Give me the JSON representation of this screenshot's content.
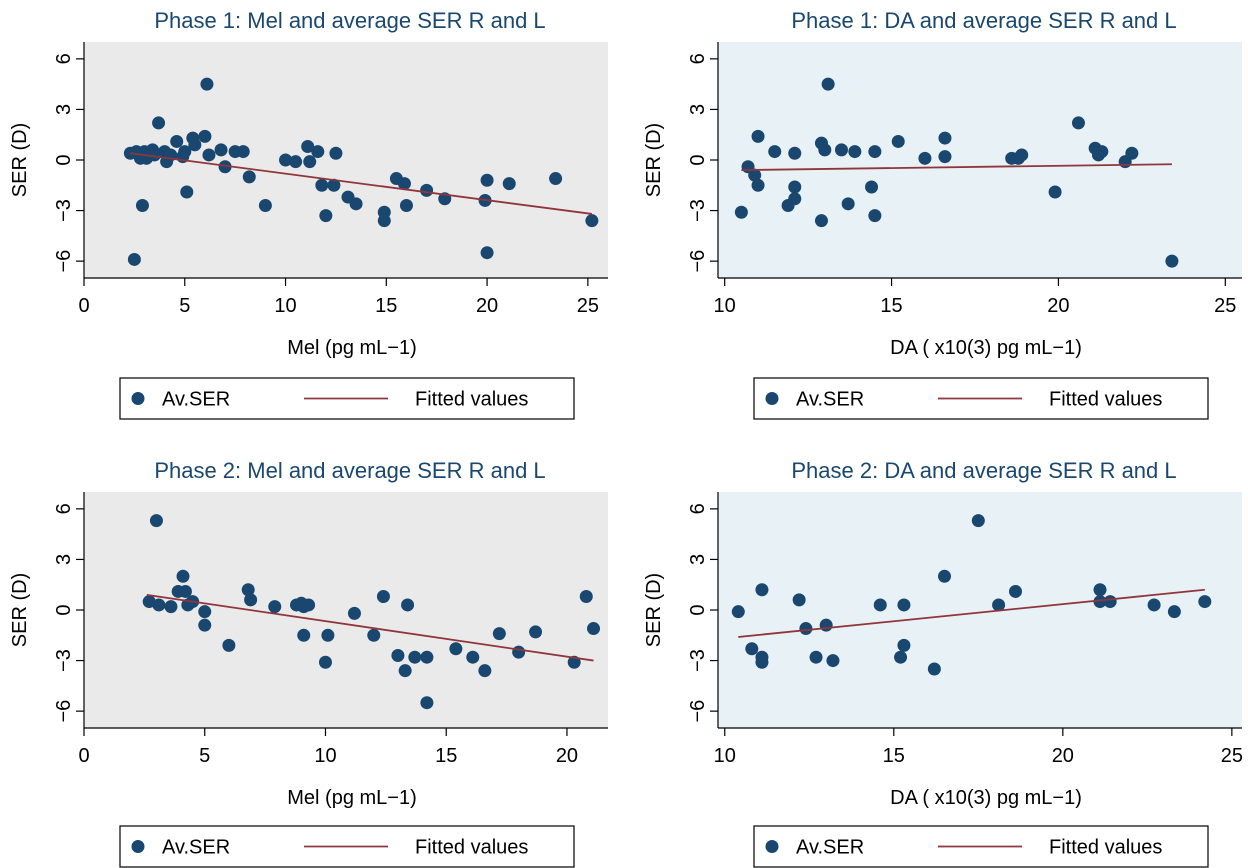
{
  "figure": {
    "colors": {
      "marker": "#1a476f",
      "fit_line": "#90353b",
      "plot_bg_left": "#eaeaea",
      "plot_bg_right": "#e8f1f5",
      "title_text": "#1a476f",
      "axis": "#000000"
    }
  },
  "chart_data": [
    {
      "type": "scatter",
      "title": "Phase 1: Mel and average SER R and L",
      "xlabel": "Mel (pg mL−1)",
      "ylabel": "SER (D)",
      "xlim": [
        0,
        26
      ],
      "ylim": [
        -7,
        7
      ],
      "xticks": [
        0,
        5,
        10,
        15,
        20,
        25
      ],
      "yticks": [
        -6,
        -3,
        0,
        3,
        6
      ],
      "grid": false,
      "legend_position": "bottom",
      "series": [
        {
          "name": "Av.SER",
          "x": [
            2.3,
            2.5,
            2.6,
            2.8,
            2.9,
            3.0,
            3.1,
            3.4,
            3.5,
            3.7,
            4.0,
            4.1,
            4.3,
            4.6,
            4.9,
            5.0,
            5.1,
            5.4,
            5.5,
            6.0,
            6.1,
            6.2,
            6.8,
            7.0,
            7.5,
            7.9,
            8.2,
            9.0,
            10.0,
            10.5,
            11.1,
            11.2,
            11.6,
            11.8,
            12.0,
            12.4,
            12.5,
            13.1,
            13.5,
            14.9,
            14.9,
            15.5,
            15.9,
            16.0,
            17.0,
            17.9,
            19.9,
            20.0,
            20.0,
            21.1,
            23.4,
            25.2
          ],
          "y": [
            0.4,
            -5.9,
            0.5,
            0.1,
            -2.7,
            0.5,
            0.1,
            0.6,
            0.3,
            2.2,
            0.5,
            -0.1,
            0.3,
            1.1,
            0.2,
            0.5,
            -1.9,
            1.3,
            0.9,
            1.4,
            4.5,
            0.3,
            0.6,
            -0.4,
            0.5,
            0.5,
            -1.0,
            -2.7,
            0.0,
            -0.1,
            0.8,
            -0.1,
            0.5,
            -1.5,
            -3.3,
            -1.5,
            0.4,
            -2.2,
            -2.6,
            -3.1,
            -3.6,
            -1.1,
            -1.4,
            -2.7,
            -1.8,
            -2.3,
            -2.4,
            -1.2,
            -5.5,
            -1.4,
            -1.1,
            -3.6
          ]
        },
        {
          "name": "Fitted values",
          "x": [
            2.3,
            25.2
          ],
          "y": [
            0.4,
            -3.2
          ]
        }
      ]
    },
    {
      "type": "scatter",
      "title": "Phase 1: DA and average SER R and L",
      "xlabel": "DA ( x10(3) pg mL−1)",
      "ylabel": "SER (D)",
      "xlim": [
        9.8,
        25.5
      ],
      "ylim": [
        -7,
        7
      ],
      "xticks": [
        10,
        15,
        20,
        25
      ],
      "yticks": [
        -6,
        -3,
        0,
        3,
        6
      ],
      "grid": false,
      "legend_position": "bottom",
      "series": [
        {
          "name": "Av.SER",
          "x": [
            10.5,
            10.7,
            10.9,
            11.0,
            11.0,
            11.5,
            11.9,
            12.1,
            12.1,
            12.1,
            12.9,
            12.9,
            13.0,
            13.1,
            13.5,
            13.7,
            13.9,
            14.4,
            14.5,
            14.5,
            15.2,
            16.0,
            16.6,
            16.6,
            18.6,
            18.8,
            18.9,
            19.9,
            20.6,
            21.1,
            21.2,
            21.3,
            22.0,
            22.2,
            23.4
          ],
          "y": [
            -3.1,
            -0.4,
            -0.9,
            -1.5,
            1.4,
            0.5,
            -2.7,
            -2.3,
            -1.6,
            0.4,
            1.0,
            -3.6,
            0.6,
            4.5,
            0.6,
            -2.6,
            0.5,
            -1.6,
            -3.3,
            0.5,
            1.1,
            0.1,
            0.2,
            1.3,
            0.1,
            0.1,
            0.3,
            -1.9,
            2.2,
            0.7,
            0.3,
            0.5,
            -0.1,
            0.4,
            -6.0
          ]
        },
        {
          "name": "Fitted values",
          "x": [
            10.5,
            23.4
          ],
          "y": [
            -0.6,
            -0.25
          ]
        }
      ]
    },
    {
      "type": "scatter",
      "title": "Phase 2: Mel and average SER R and L",
      "xlabel": "Mel (pg mL−1)",
      "ylabel": "SER (D)",
      "xlim": [
        0,
        21.7
      ],
      "ylim": [
        -7,
        7
      ],
      "xticks": [
        0,
        5,
        10,
        15,
        20
      ],
      "yticks": [
        -6,
        -3,
        0,
        3,
        6
      ],
      "grid": false,
      "legend_position": "bottom",
      "series": [
        {
          "name": "Av.SER",
          "x": [
            2.7,
            3.0,
            3.1,
            3.6,
            3.9,
            4.1,
            4.2,
            4.3,
            4.5,
            5.0,
            5.0,
            6.0,
            6.8,
            6.9,
            7.9,
            8.8,
            9.0,
            9.1,
            9.1,
            9.3,
            10.0,
            10.1,
            11.2,
            12.0,
            12.4,
            13.0,
            13.3,
            13.4,
            13.7,
            14.2,
            14.2,
            15.4,
            16.1,
            16.6,
            17.2,
            18.0,
            18.7,
            20.3,
            20.8,
            21.1
          ],
          "y": [
            0.5,
            5.3,
            0.3,
            0.2,
            1.1,
            2.0,
            1.1,
            0.3,
            0.5,
            -0.1,
            -0.9,
            -2.1,
            1.2,
            0.6,
            0.2,
            0.3,
            0.4,
            0.2,
            -1.5,
            0.3,
            -3.1,
            -1.5,
            -0.2,
            -1.5,
            0.8,
            -2.7,
            -3.6,
            0.3,
            -2.8,
            -2.8,
            -5.5,
            -2.3,
            -2.8,
            -3.6,
            -1.4,
            -2.5,
            -1.3,
            -3.1,
            0.8,
            -1.1
          ]
        },
        {
          "name": "Fitted values",
          "x": [
            2.6,
            21.1
          ],
          "y": [
            0.9,
            -3.0
          ]
        }
      ]
    },
    {
      "type": "scatter",
      "title": "Phase 2: DA and average SER R and L",
      "xlabel": "DA ( x10(3) pg mL−1)",
      "ylabel": "SER (D)",
      "xlim": [
        9.8,
        25.3
      ],
      "ylim": [
        -7,
        7
      ],
      "xticks": [
        10,
        15,
        20,
        25
      ],
      "yticks": [
        -6,
        -3,
        0,
        3,
        6
      ],
      "grid": false,
      "legend_position": "bottom",
      "series": [
        {
          "name": "Av.SER",
          "x": [
            10.4,
            10.8,
            11.1,
            11.1,
            11.1,
            12.2,
            12.4,
            12.7,
            13.0,
            13.2,
            14.6,
            15.2,
            15.3,
            15.3,
            16.2,
            16.5,
            17.5,
            18.1,
            18.6,
            21.1,
            21.1,
            21.4,
            22.7,
            23.3,
            24.2
          ],
          "y": [
            -0.1,
            -2.3,
            -2.8,
            -3.1,
            1.2,
            0.6,
            -1.1,
            -2.8,
            -0.9,
            -3.0,
            0.3,
            -2.8,
            -2.1,
            0.3,
            -3.5,
            2.0,
            5.3,
            0.3,
            1.1,
            0.5,
            1.2,
            0.5,
            0.3,
            -0.1,
            0.5
          ]
        },
        {
          "name": "Fitted values",
          "x": [
            10.4,
            24.2
          ],
          "y": [
            -1.6,
            1.2
          ]
        }
      ]
    }
  ]
}
